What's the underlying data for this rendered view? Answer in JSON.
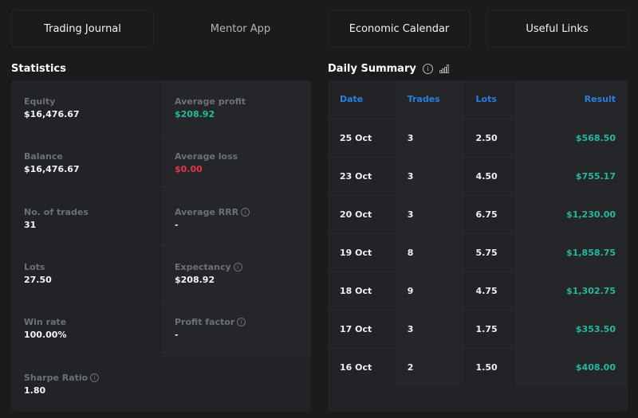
{
  "tabs": [
    "Trading Journal",
    "Mentor App",
    "Economic Calendar",
    "Useful Links"
  ],
  "statistics": {
    "title": "Statistics",
    "items": [
      {
        "label": "Equity",
        "value": "$16,476.67"
      },
      {
        "label": "Average profit",
        "value": "$208.92"
      },
      {
        "label": "Balance",
        "value": "$16,476.67"
      },
      {
        "label": "Average loss",
        "value": "$0.00"
      },
      {
        "label": "No. of trades",
        "value": "31"
      },
      {
        "label": "Average RRR",
        "value": "-"
      },
      {
        "label": "Lots",
        "value": "27.50"
      },
      {
        "label": "Expectancy",
        "value": "$208.92"
      },
      {
        "label": "Win rate",
        "value": "100.00%"
      },
      {
        "label": "Profit factor",
        "value": "-"
      },
      {
        "label": "Sharpe Ratio",
        "value": "1.80"
      }
    ]
  },
  "daily": {
    "title": "Daily Summary",
    "columns": [
      "Date",
      "Trades",
      "Lots",
      "Result"
    ],
    "rows": [
      [
        "25 Oct",
        "3",
        "2.50",
        "$568.50"
      ],
      [
        "23 Oct",
        "3",
        "4.50",
        "$755.17"
      ],
      [
        "20 Oct",
        "3",
        "6.75",
        "$1,230.00"
      ],
      [
        "19 Oct",
        "8",
        "5.75",
        "$1,858.75"
      ],
      [
        "18 Oct",
        "9",
        "4.75",
        "$1,302.75"
      ],
      [
        "17 Oct",
        "3",
        "1.75",
        "$353.50"
      ],
      [
        "16 Oct",
        "2",
        "1.50",
        "$408.00"
      ]
    ]
  },
  "colors": {
    "profit": "#26b89a",
    "loss": "#e5334b",
    "accent": "#2b7fe0"
  }
}
